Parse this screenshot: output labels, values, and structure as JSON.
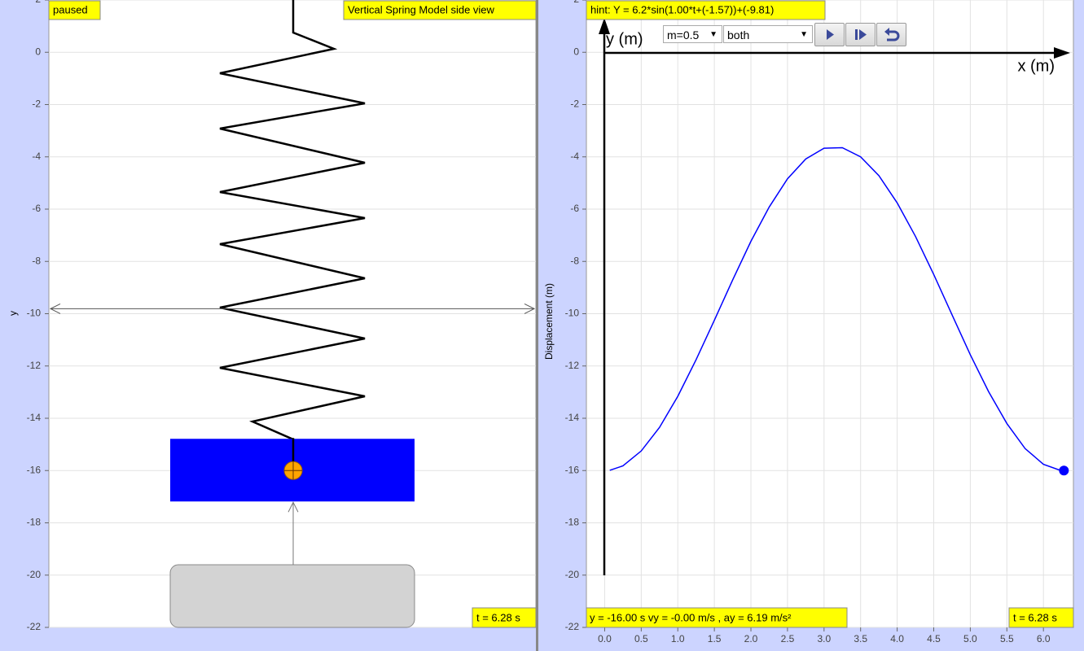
{
  "left_view": {
    "status": "paused",
    "title": "Vertical Spring Model side view",
    "time": "t = 6.28 s",
    "y_axis_label": "y",
    "ylim": [
      -22,
      2
    ],
    "yticks": [
      2,
      0,
      -2,
      -4,
      -6,
      -8,
      -10,
      -12,
      -14,
      -16,
      -18,
      -20,
      -22
    ],
    "mass_y": -16,
    "equilibrium_y": -9.81
  },
  "right_graph": {
    "hint": "hint: Y = 6.2*sin(1.00*t+(-1.57))+(-9.81)",
    "y_axis_label": "Displacement (m)",
    "axis_y_name": "y (m)",
    "axis_x_name": "x (m)",
    "mass_select": "m=0.5",
    "mode_select": "both",
    "readout": "y = -16.00 s vy = -0.00 m/s , ay = 6.19 m/s²",
    "time": "t = 6.28 s",
    "xlim": [
      -0.25,
      6.41
    ],
    "ylim": [
      -22,
      2
    ],
    "xticks": [
      {
        "value": 0,
        "label": "0.0"
      },
      0.5,
      {
        "value": 1,
        "label": "1.0"
      },
      1.5,
      {
        "value": 2,
        "label": "2.0"
      },
      2.5,
      {
        "value": 3,
        "label": "3.0"
      },
      3.5,
      {
        "value": 4,
        "label": "4.0"
      },
      4.5,
      {
        "value": 5,
        "label": "5.0"
      },
      5.5,
      {
        "value": 6,
        "label": "6.0"
      }
    ],
    "yticks": [
      2,
      0,
      -2,
      -4,
      -6,
      -8,
      -10,
      -12,
      -14,
      -16,
      -18,
      -20,
      -22
    ],
    "color": "#0000ff",
    "x": [
      0.07,
      0.25,
      0.5,
      0.75,
      1.0,
      1.25,
      1.5,
      1.75,
      2.0,
      2.25,
      2.5,
      2.75,
      3.0,
      3.25,
      3.5,
      3.75,
      4.0,
      4.25,
      4.5,
      4.75,
      5.0,
      5.25,
      5.5,
      5.75,
      6.0,
      6.25,
      6.28
    ],
    "y": [
      -15.99,
      -15.82,
      -15.25,
      -14.35,
      -13.16,
      -11.76,
      -10.25,
      -8.71,
      -7.23,
      -5.92,
      -4.84,
      -4.08,
      -3.67,
      -3.65,
      -4.0,
      -4.72,
      -5.76,
      -7.04,
      -8.5,
      -10.04,
      -11.57,
      -12.98,
      -14.2,
      -15.16,
      -15.76,
      -16.01,
      -16.01
    ],
    "point": {
      "x": 6.28,
      "y": -16
    }
  }
}
